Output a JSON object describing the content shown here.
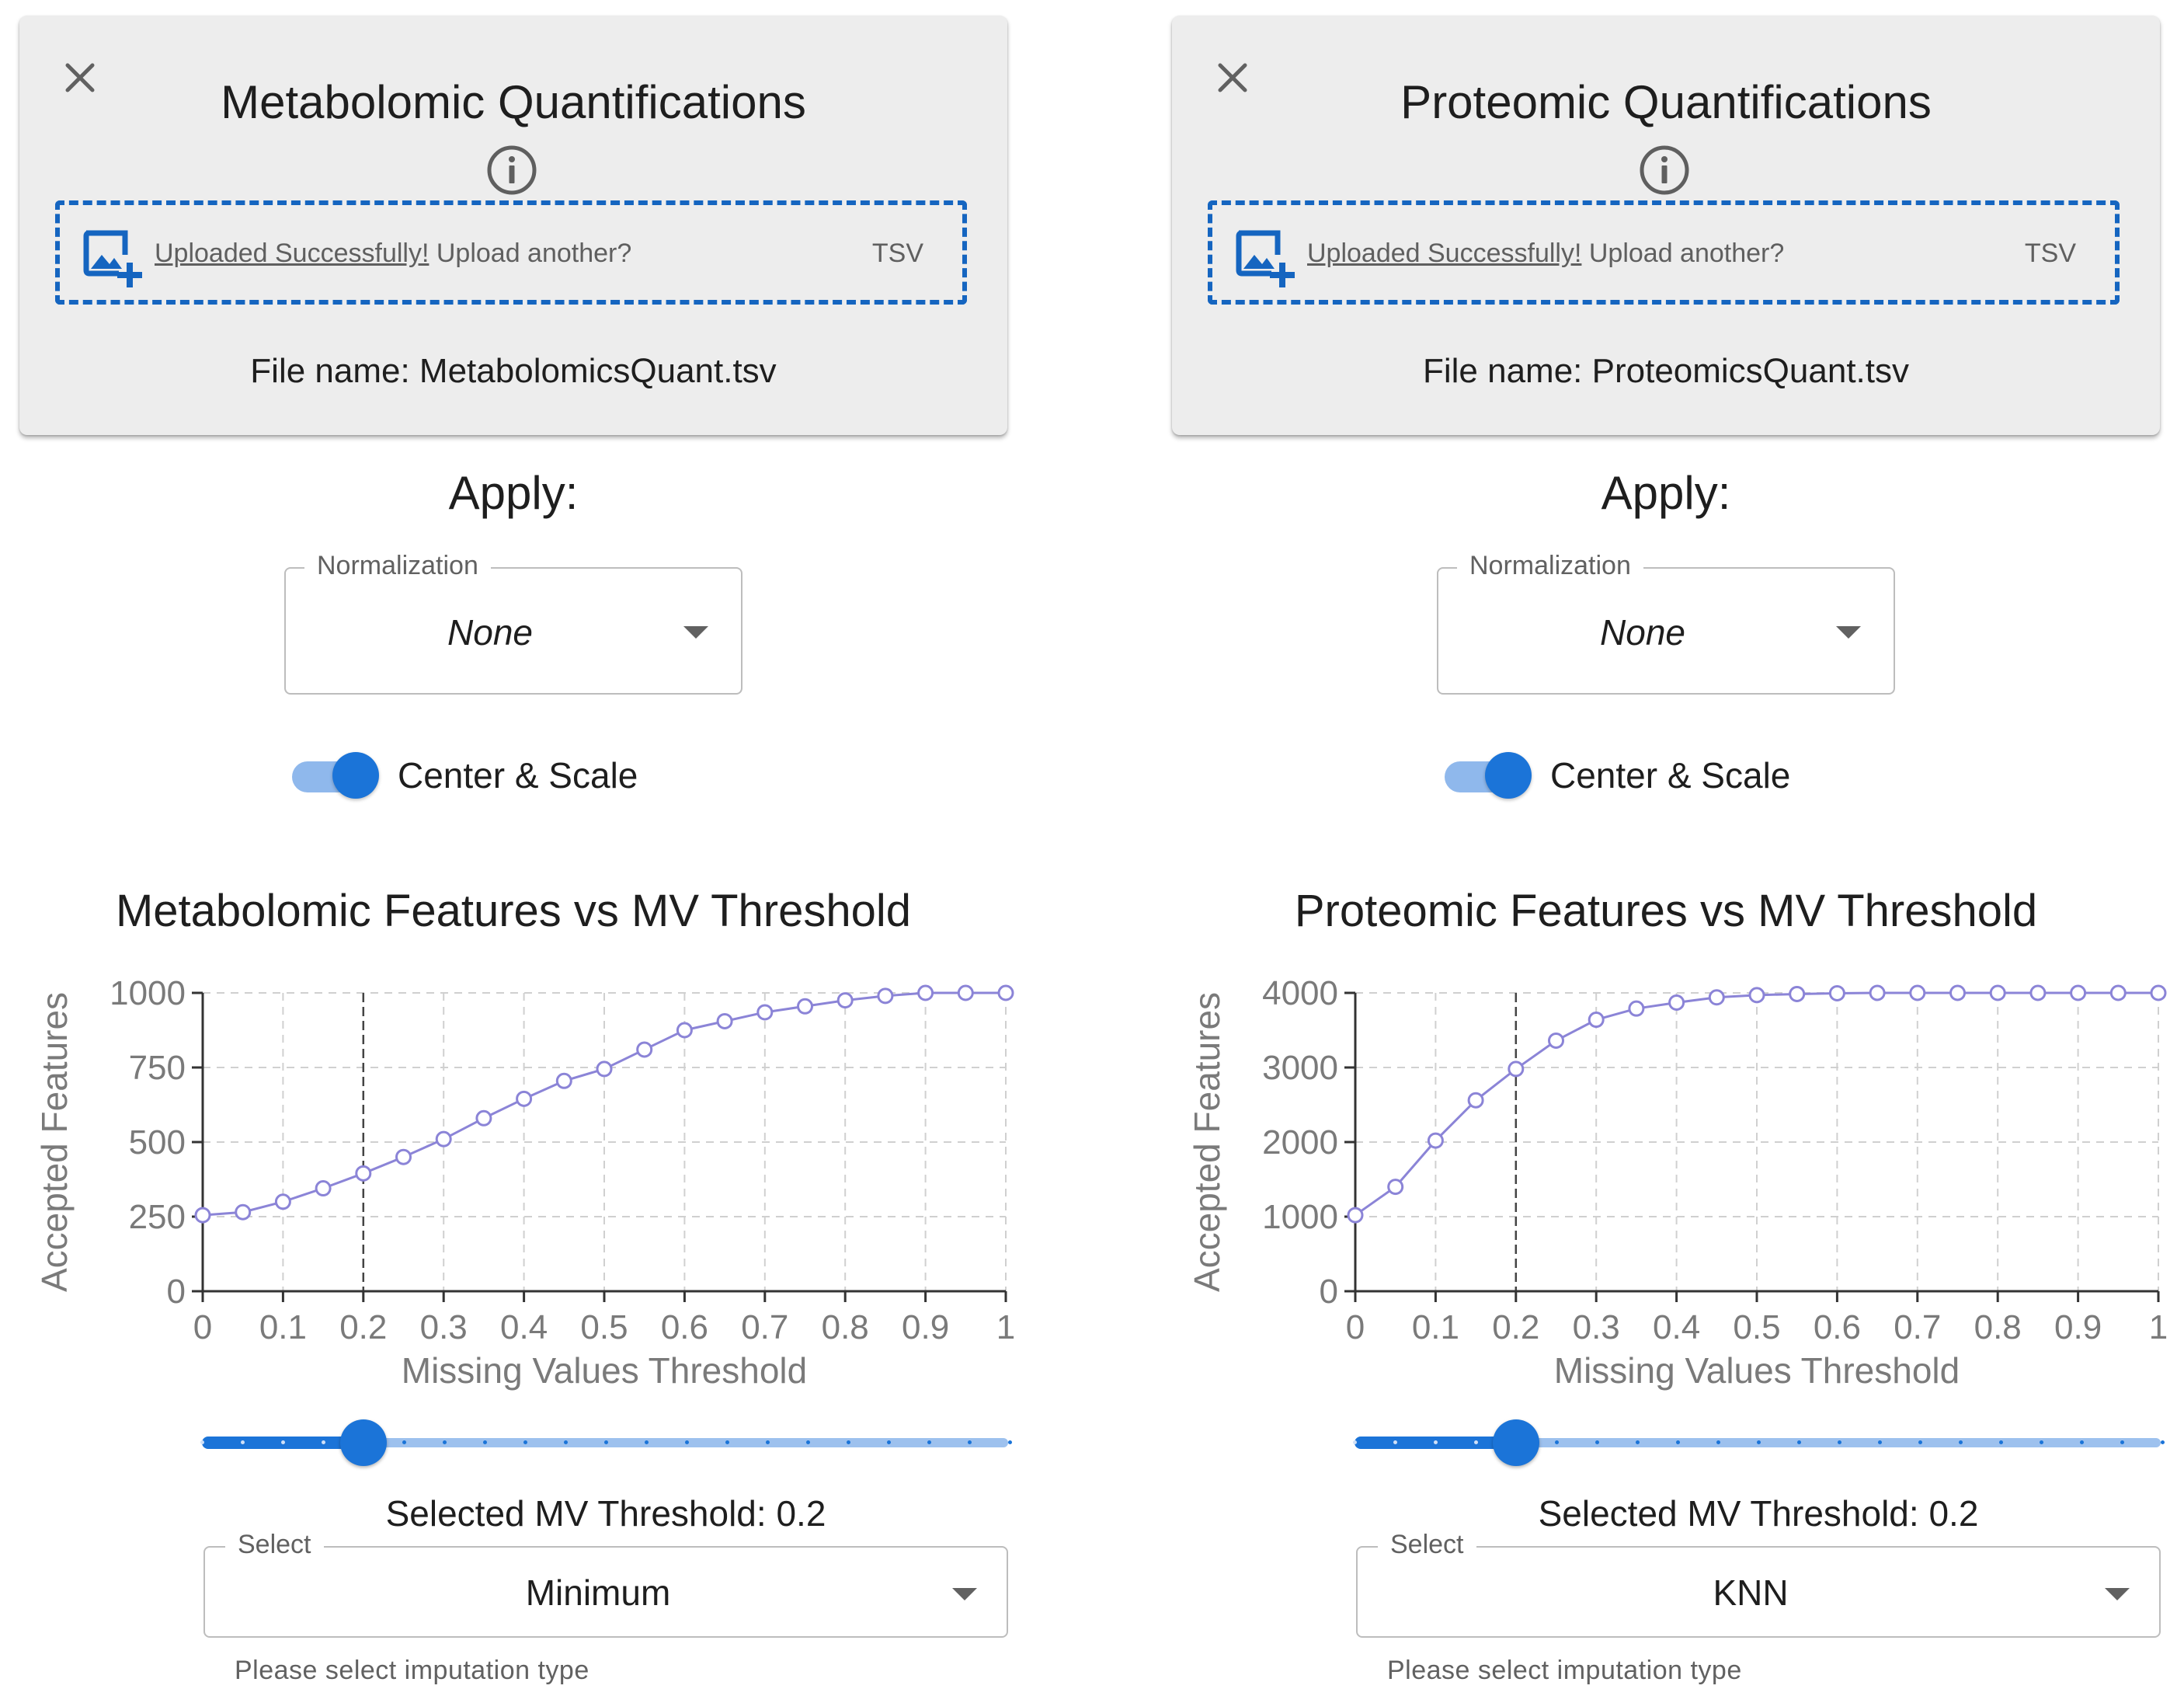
{
  "panels": [
    {
      "card": {
        "title": "Metabolomic Quantifications",
        "upload_link": "Uploaded Successfully!",
        "upload_suffix": " Upload another?",
        "upload_ext": "TSV",
        "file_name": "File name: MetabolomicsQuant.tsv",
        "icons": [
          "close-icon",
          "info-icon",
          "add-photo-icon"
        ]
      },
      "apply_label": "Apply:",
      "normalization": {
        "label": "Normalization",
        "value": "None"
      },
      "center_scale": {
        "label": "Center & Scale",
        "checked": true
      },
      "selected_threshold": "Selected MV Threshold: 0.2",
      "imputation": {
        "label": "Select",
        "value": "Minimum",
        "helper": "Please select imputation type"
      },
      "slider": {
        "value": 0.2,
        "min": 0,
        "max": 1,
        "step": 0.05
      },
      "chart_data": {
        "type": "line",
        "title": "Metabolomic Features vs MV Threshold",
        "xlabel": "Missing Values Threshold",
        "ylabel": "Accepted Features",
        "x": [
          0,
          0.05,
          0.1,
          0.15,
          0.2,
          0.25,
          0.3,
          0.35,
          0.4,
          0.45,
          0.5,
          0.55,
          0.6,
          0.65,
          0.7,
          0.75,
          0.8,
          0.85,
          0.9,
          0.95,
          1
        ],
        "values": [
          255,
          265,
          300,
          345,
          395,
          450,
          510,
          580,
          645,
          705,
          745,
          810,
          875,
          905,
          935,
          955,
          975,
          990,
          1000,
          1000,
          1000
        ],
        "xlim": [
          0,
          1
        ],
        "ylim": [
          0,
          1000
        ],
        "xticks": [
          "0",
          "0.1",
          "0.2",
          "0.3",
          "0.4",
          "0.5",
          "0.6",
          "0.7",
          "0.8",
          "0.9",
          "1"
        ],
        "yticks": [
          "0",
          "250",
          "500",
          "750",
          "1000"
        ],
        "ytick_values": [
          0,
          250,
          500,
          750,
          1000
        ],
        "threshold_line": 0.2,
        "grid": true,
        "series_color": "#8b84d7"
      }
    },
    {
      "card": {
        "title": "Proteomic Quantifications",
        "upload_link": "Uploaded Successfully!",
        "upload_suffix": " Upload another?",
        "upload_ext": "TSV",
        "file_name": "File name: ProteomicsQuant.tsv",
        "icons": [
          "close-icon",
          "info-icon",
          "add-photo-icon"
        ]
      },
      "apply_label": "Apply:",
      "normalization": {
        "label": "Normalization",
        "value": "None"
      },
      "center_scale": {
        "label": "Center & Scale",
        "checked": true
      },
      "selected_threshold": "Selected MV Threshold: 0.2",
      "imputation": {
        "label": "Select",
        "value": "KNN",
        "helper": "Please select imputation type"
      },
      "slider": {
        "value": 0.2,
        "min": 0,
        "max": 1,
        "step": 0.05
      },
      "chart_data": {
        "type": "line",
        "title": "Proteomic Features vs MV Threshold",
        "xlabel": "Missing Values Threshold",
        "ylabel": "Accepted Features",
        "x": [
          0,
          0.05,
          0.1,
          0.15,
          0.2,
          0.25,
          0.3,
          0.35,
          0.4,
          0.45,
          0.5,
          0.55,
          0.6,
          0.65,
          0.7,
          0.75,
          0.8,
          0.85,
          0.9,
          0.95,
          1
        ],
        "values": [
          1020,
          1400,
          2020,
          2560,
          2980,
          3360,
          3640,
          3790,
          3870,
          3940,
          3970,
          3985,
          3995,
          4000,
          4000,
          4000,
          4000,
          4000,
          4000,
          4000,
          4000
        ],
        "xlim": [
          0,
          1
        ],
        "ylim": [
          0,
          4000
        ],
        "xticks": [
          "0",
          "0.1",
          "0.2",
          "0.3",
          "0.4",
          "0.5",
          "0.6",
          "0.7",
          "0.8",
          "0.9",
          "1"
        ],
        "yticks": [
          "0",
          "1000",
          "2000",
          "3000",
          "4000"
        ],
        "ytick_values": [
          0,
          1000,
          2000,
          3000,
          4000
        ],
        "threshold_line": 0.2,
        "grid": true,
        "series_color": "#8b84d7"
      }
    }
  ],
  "colors": {
    "accent": "#1b74d8",
    "accent_light": "#9dc1ee",
    "dashed_border": "#1565c0",
    "card_bg": "#ededed",
    "grid": "#d0d0d0",
    "axis_text": "#7a7a7a"
  }
}
